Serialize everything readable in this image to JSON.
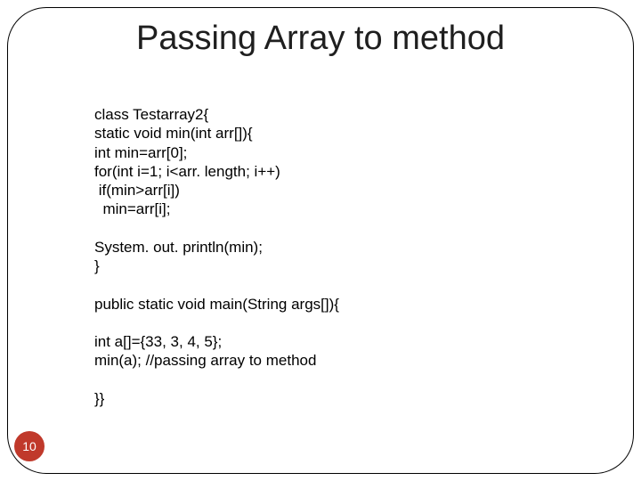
{
  "title": "Passing Array to method",
  "code_lines": [
    "class Testarray2{",
    "static void min(int arr[]){",
    "int min=arr[0];",
    "for(int i=1; i<arr. length; i++)",
    " if(min>arr[i])",
    "  min=arr[i];",
    "",
    "System. out. println(min);",
    "}",
    "",
    "public static void main(String args[]){",
    "",
    "int a[]={33, 3, 4, 5};",
    "min(a); //passing array to method",
    "",
    "}}"
  ],
  "page_number": "10",
  "badge_bg": "#c0392b",
  "badge_fg": "#ffffff",
  "title_color": "#1f1f1f",
  "code_fontsize": 17,
  "title_fontsize": 38
}
